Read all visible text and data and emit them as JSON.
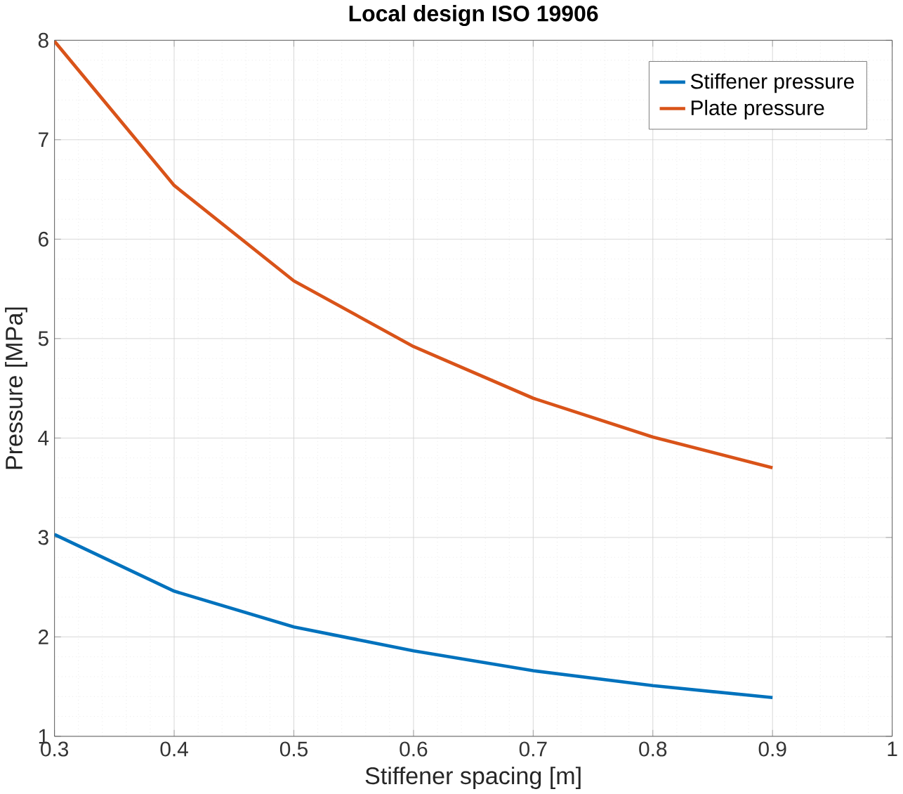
{
  "chart_data": {
    "type": "line",
    "title": "Local design ISO 19906",
    "xlabel": "Stiffener spacing [m]",
    "ylabel": "Pressure [MPa]",
    "x": [
      0.3,
      0.4,
      0.5,
      0.6,
      0.7,
      0.8,
      0.9
    ],
    "series": [
      {
        "name": "Stiffener pressure",
        "color": "#0072bd",
        "values": [
          3.03,
          2.46,
          2.1,
          1.86,
          1.66,
          1.51,
          1.39
        ]
      },
      {
        "name": "Plate pressure",
        "color": "#d95319",
        "values": [
          7.99,
          6.54,
          5.58,
          4.92,
          4.4,
          4.01,
          3.7
        ]
      }
    ],
    "xlim": [
      0.3,
      1
    ],
    "ylim": [
      1,
      8
    ],
    "xticks": [
      0.3,
      0.4,
      0.5,
      0.6,
      0.7,
      0.8,
      0.9,
      1
    ],
    "yticks": [
      1,
      2,
      3,
      4,
      5,
      6,
      7,
      8
    ],
    "grid": true,
    "legend": "top right",
    "marker": "none",
    "line_style": "solid"
  }
}
